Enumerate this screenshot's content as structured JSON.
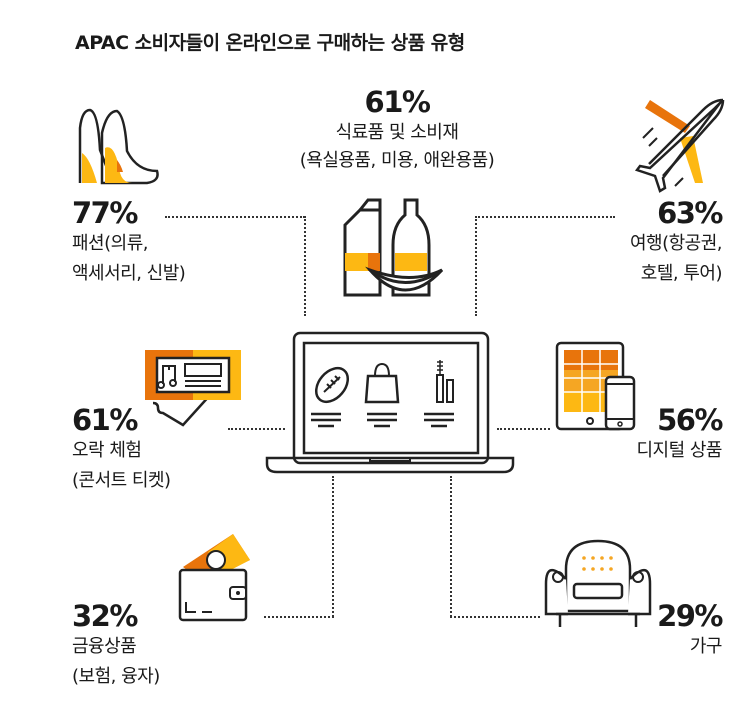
{
  "title": "APAC 소비자들이 온라인으로 구매하는 상품 유형",
  "colors": {
    "accent_orange": "#E8740C",
    "accent_yellow": "#FDB813",
    "line": "#222222"
  },
  "categories": [
    {
      "id": "food",
      "percent": "61%",
      "value": 61,
      "label_lines": [
        "식료품 및 소비재",
        "(욕실용품, 미용, 애완용품)"
      ],
      "icon": "grocery-icon"
    },
    {
      "id": "fashion",
      "percent": "77%",
      "value": 77,
      "label_lines": [
        "패션(의류,",
        "액세서리, 신발)"
      ],
      "icon": "high-heels-icon"
    },
    {
      "id": "travel",
      "percent": "63%",
      "value": 63,
      "label_lines": [
        "여행(항공권,",
        "호텔, 투어)"
      ],
      "icon": "airplane-icon"
    },
    {
      "id": "entertainment",
      "percent": "61%",
      "value": 61,
      "label_lines": [
        "오락 체험",
        "(콘서트 티켓)"
      ],
      "icon": "ticket-icon"
    },
    {
      "id": "digital",
      "percent": "56%",
      "value": 56,
      "label_lines": [
        "디지털 상품"
      ],
      "icon": "tablet-phone-icon"
    },
    {
      "id": "finance",
      "percent": "32%",
      "value": 32,
      "label_lines": [
        "금융상품",
        "(보험, 융자)"
      ],
      "icon": "wallet-icon"
    },
    {
      "id": "furniture",
      "percent": "29%",
      "value": 29,
      "label_lines": [
        "가구"
      ],
      "icon": "armchair-icon"
    }
  ],
  "center_icon": "laptop-shopping-icon"
}
